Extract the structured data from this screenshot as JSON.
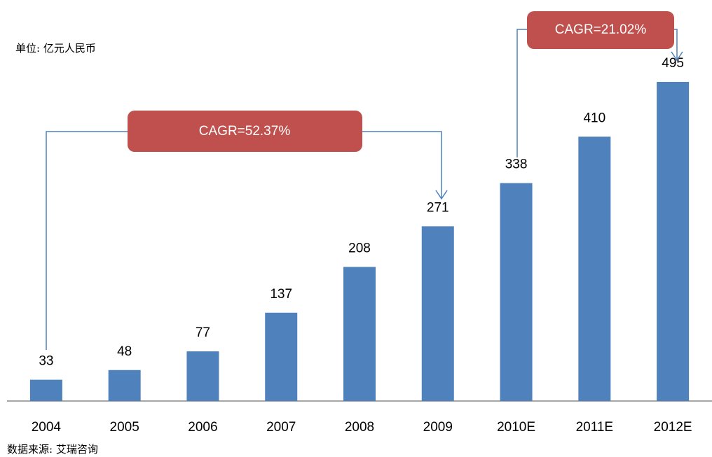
{
  "chart_data": {
    "type": "bar",
    "unit_label": "单位: 亿元人民币",
    "source": "数据来源: 艾瑞咨询",
    "categories": [
      "2004",
      "2005",
      "2006",
      "2007",
      "2008",
      "2009",
      "2010E",
      "2011E",
      "2012E"
    ],
    "values": [
      33,
      48,
      77,
      137,
      208,
      271,
      338,
      410,
      495
    ],
    "color": "#4f81bd",
    "annotations": [
      {
        "label": "CAGR=52.37%"
      },
      {
        "label": "CAGR=21.02%"
      }
    ],
    "annotation_color": "#c0504d"
  }
}
